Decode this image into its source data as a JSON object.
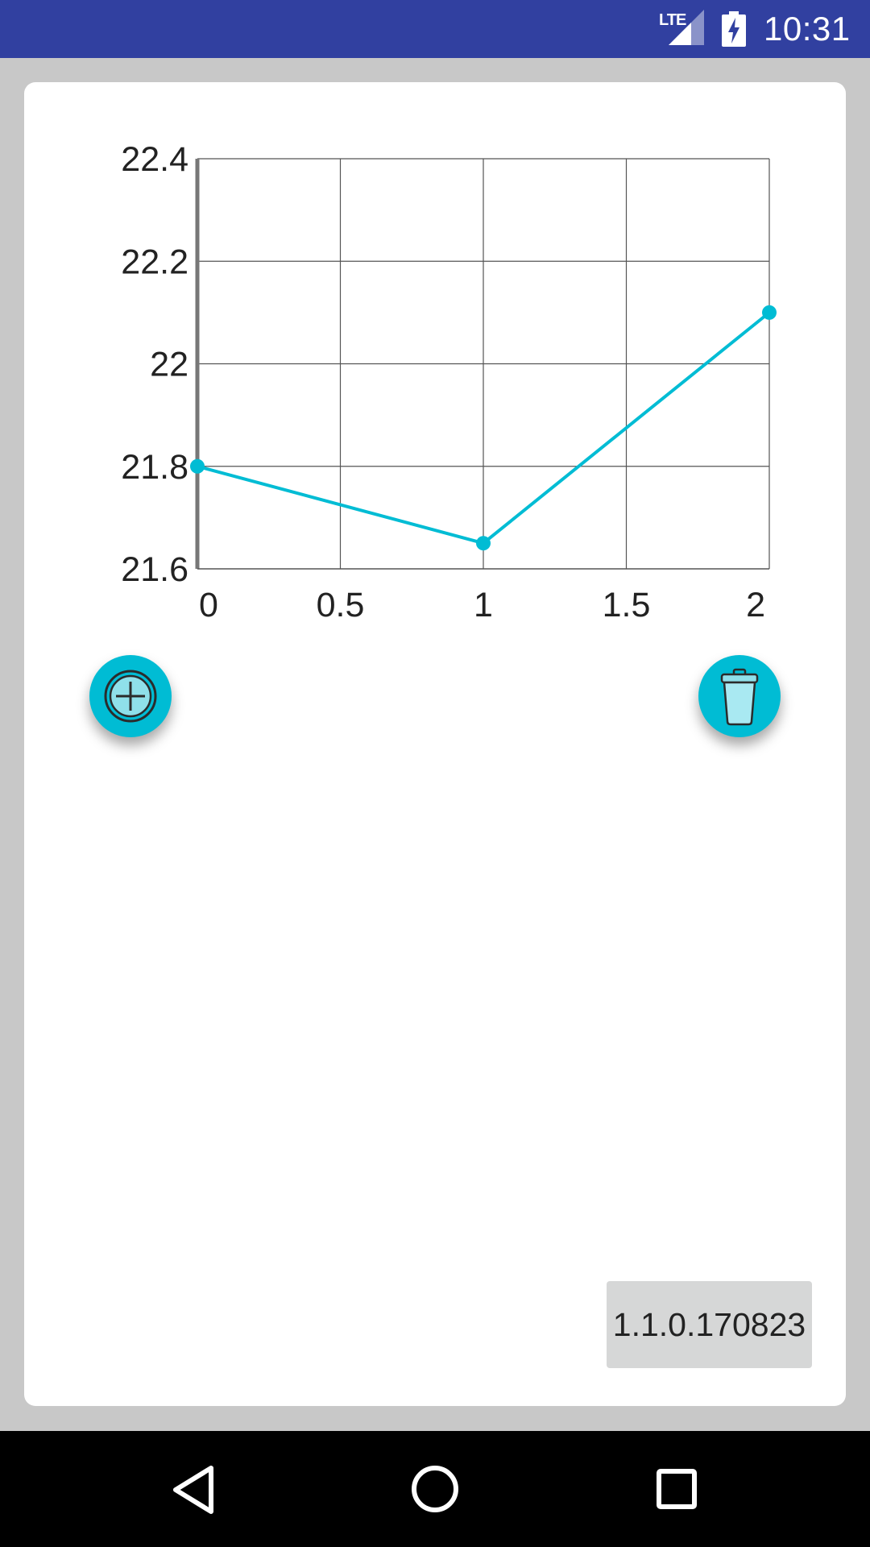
{
  "status_bar": {
    "network_label": "LTE",
    "time": "10:31",
    "background_color": "#3140a0"
  },
  "chart_data": {
    "type": "line",
    "x": [
      0,
      1,
      2
    ],
    "series": [
      {
        "values": [
          21.8,
          21.65,
          22.1
        ],
        "color": "#00bcd4"
      }
    ],
    "xlim": [
      0,
      2
    ],
    "ylim": [
      21.6,
      22.4
    ],
    "x_ticks": [
      0,
      0.5,
      1,
      1.5,
      2
    ],
    "y_ticks": [
      21.6,
      21.8,
      22,
      22.2,
      22.4
    ],
    "x_tick_labels": [
      "0",
      "0.5",
      "1",
      "1.5",
      "2"
    ],
    "y_tick_labels": [
      "21.6",
      "21.8",
      "22",
      "22.2",
      "22.4"
    ],
    "grid": true,
    "title": "",
    "xlabel": "",
    "ylabel": ""
  },
  "actions": {
    "add_icon": "plus-circle-icon",
    "delete_icon": "trash-icon",
    "accent_color": "#00bcd4"
  },
  "version": "1.1.0.170823",
  "nav": {
    "back_icon": "back-triangle-icon",
    "home_icon": "home-circle-icon",
    "recents_icon": "recents-square-icon"
  }
}
